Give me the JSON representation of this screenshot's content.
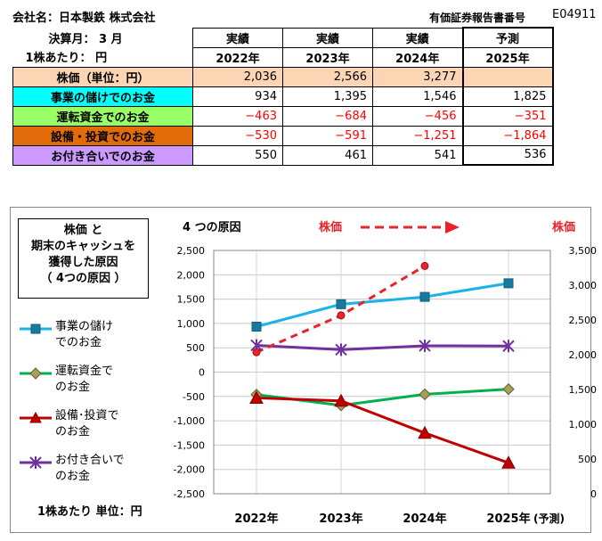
{
  "header": {
    "company": "会社名：日本製鉄 株式会社",
    "report_label": "有価証券報告書番号",
    "report_no": "E04911",
    "fiscal_month": "決算月： 3 月",
    "per_share": "1株あたり： 円"
  },
  "table": {
    "columns": [
      {
        "status": "実績",
        "year": "2022年"
      },
      {
        "status": "実績",
        "year": "2023年"
      },
      {
        "status": "実績",
        "year": "2024年"
      },
      {
        "status": "予測",
        "year": "2025年"
      }
    ],
    "rows": [
      {
        "label": "株価（単位：円）",
        "color": "#fcd5b4",
        "values": [
          "2,036",
          "2,566",
          "3,277",
          ""
        ]
      },
      {
        "label": "事業の儲けでのお金",
        "color": "#00ffff",
        "values": [
          "934",
          "1,395",
          "1,546",
          "1,825"
        ]
      },
      {
        "label": "運転資金でのお金",
        "color": "#99ff66",
        "values": [
          "−463",
          "−684",
          "−456",
          "−351"
        ]
      },
      {
        "label": "設備・投資でのお金",
        "color": "#e26b0a",
        "values": [
          "−530",
          "−591",
          "−1,251",
          "−1,864"
        ]
      },
      {
        "label": "お付き合いでのお金",
        "color": "#cc99ff",
        "values": [
          "550",
          "461",
          "541",
          "536"
        ]
      }
    ]
  },
  "chart_panel": {
    "title_lines": [
      "株価 と",
      "期末のキャッシュを",
      "獲得した原因",
      "（ 4つの原因 ）"
    ],
    "causes_label": "4 つの原因",
    "stock_arrow_label": "株価",
    "stock_axis_label": "株価",
    "unit_label": "1株あたり 単位：円",
    "legend": [
      {
        "line1": "事業の儲け",
        "line2": "でのお金",
        "color": "#1ab2e8",
        "marker": "square"
      },
      {
        "line1": "運転資金で",
        "line2": "のお金",
        "color": "#00b050",
        "marker": "diamond"
      },
      {
        "line1": "設備･投資で",
        "line2": "のお金",
        "color": "#c00000",
        "marker": "triangle"
      },
      {
        "line1": "お付き合いで",
        "line2": "のお金",
        "color": "#7030a0",
        "marker": "star"
      }
    ]
  },
  "chart_data": {
    "type": "line",
    "categories": [
      "2022年",
      "2023年",
      "2024年",
      "2025年"
    ],
    "forecast_suffix": "(予測)",
    "y_left": {
      "min": -2500,
      "max": 2500,
      "step": 500,
      "ticks": [
        "2,500",
        "2,000",
        "1,500",
        "1,000",
        "500",
        "0",
        "-500",
        "-1,000",
        "-1,500",
        "-2,000",
        "-2,500"
      ]
    },
    "y_right": {
      "min": 0,
      "max": 3500,
      "step": 500,
      "ticks": [
        "3,500",
        "3,000",
        "2,500",
        "2,000",
        "1,500",
        "1,000",
        "500",
        "0"
      ]
    },
    "series": [
      {
        "name": "事業の儲けでのお金",
        "axis": "left",
        "color": "#1ab2e8",
        "marker": "square",
        "values": [
          934,
          1395,
          1546,
          1825
        ]
      },
      {
        "name": "運転資金でのお金",
        "axis": "left",
        "color": "#00b050",
        "marker": "diamond",
        "values": [
          -463,
          -684,
          -456,
          -351
        ]
      },
      {
        "name": "設備･投資でのお金",
        "axis": "left",
        "color": "#c00000",
        "marker": "triangle",
        "values": [
          -530,
          -591,
          -1251,
          -1864
        ]
      },
      {
        "name": "お付き合いでのお金",
        "axis": "left",
        "color": "#7030a0",
        "marker": "star",
        "values": [
          550,
          461,
          541,
          536
        ]
      },
      {
        "name": "株価",
        "axis": "right",
        "color": "#e8232b",
        "marker": "circle",
        "dashed": true,
        "values": [
          2036,
          2566,
          3277,
          null
        ]
      }
    ],
    "grid": true
  }
}
